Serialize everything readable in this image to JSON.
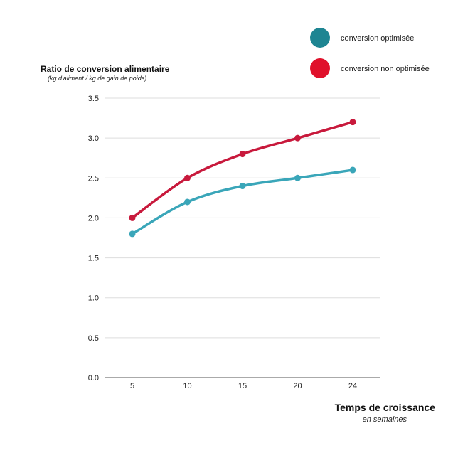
{
  "chart_data": {
    "type": "line",
    "ytitle": "Ratio de conversion alimentaire",
    "ysubtitle": "(kg d'aliment / kg de gain de poids)",
    "xtitle": "Temps de croissance",
    "xsubtitle": "en semaines",
    "x": [
      "5",
      "10",
      "15",
      "20",
      "24"
    ],
    "yticks": [
      "0.0",
      "0.5",
      "1.0",
      "1.5",
      "2.0",
      "2.5",
      "3.0",
      "3.5"
    ],
    "ylim": [
      0,
      3.5
    ],
    "grid": true,
    "legend_position": "top-right",
    "series": [
      {
        "name": "conversion optimisée",
        "values": [
          1.8,
          2.2,
          2.4,
          2.5,
          2.6
        ],
        "color": "#3aa6b9",
        "legend_color": "#1e8592"
      },
      {
        "name": "conversion non optimisée",
        "values": [
          2.0,
          2.5,
          2.8,
          3.0,
          3.2
        ],
        "color": "#c8193c",
        "legend_color": "#e0112b"
      }
    ]
  }
}
